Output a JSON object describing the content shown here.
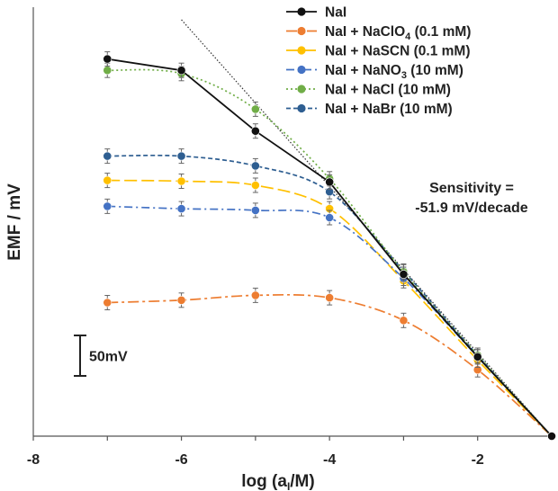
{
  "chart_data": {
    "type": "line",
    "title": "",
    "xlabel_main": "log (a",
    "xlabel_sub": "I",
    "xlabel_tail": "/M)",
    "ylabel": "EMF / mV",
    "xlim": [
      -8,
      -1
    ],
    "ylim": [
      0,
      530
    ],
    "x_ticks": [
      -8,
      -6,
      -4,
      -2
    ],
    "x_tick_labels": [
      "-8",
      "-6",
      "-4",
      "-2"
    ],
    "grid": false,
    "legend_position": "top-right",
    "scale_bar_label": "50mV",
    "scale_bar_mv": 50,
    "annotation_lines": [
      "Sensitivity =",
      "-51.9 mV/decade"
    ],
    "series": [
      {
        "name": "NaI",
        "legend_parts": [
          "NaI"
        ],
        "color": "#111111",
        "dash": "",
        "x": [
          -7,
          -6,
          -5,
          -4,
          -3,
          -2,
          -1
        ],
        "y": [
          466,
          452,
          377,
          314,
          200,
          98,
          0
        ]
      },
      {
        "name": "NaI + NaClO4 (0.1 mM)",
        "legend_parts": [
          "NaI + NaClO",
          "4",
          " (0.1 mM)"
        ],
        "color": "#ED7D31",
        "dash": "12 4 3 4",
        "x": [
          -7,
          -6,
          -5,
          -4,
          -3,
          -2,
          -1
        ],
        "y": [
          165,
          168,
          174,
          171,
          143,
          82,
          0
        ]
      },
      {
        "name": "NaI + NaSCN (0.1 mM)",
        "legend_parts": [
          "NaI + NaSCN (0.1 mM)"
        ],
        "color": "#FFC000",
        "dash": "14 5",
        "x": [
          -7,
          -6,
          -5,
          -4,
          -3,
          -2,
          -1
        ],
        "y": [
          316,
          315,
          310,
          281,
          192,
          94,
          0
        ]
      },
      {
        "name": "NaI + NaNO3 (10 mM)",
        "legend_parts": [
          "NaI + NaNO",
          "3",
          " (10 mM)"
        ],
        "color": "#4472C4",
        "dash": "9 4 2 4",
        "x": [
          -7,
          -6,
          -5,
          -4,
          -3,
          -2,
          -1
        ],
        "y": [
          284,
          281,
          279,
          270,
          195,
          98,
          0
        ]
      },
      {
        "name": "NaI + NaCl (10 mM)",
        "legend_parts": [
          "NaI + NaCl (10 mM)"
        ],
        "color": "#70AD47",
        "dash": "2 3",
        "x": [
          -7,
          -6,
          -5,
          -4,
          -3,
          -2,
          -1
        ],
        "y": [
          452,
          448,
          404,
          318,
          203,
          100,
          0
        ]
      },
      {
        "name": "NaI + NaBr (10 mM)",
        "legend_parts": [
          "NaI + NaBr (10 mM)"
        ],
        "color": "#2E5E91",
        "dash": "5 3",
        "x": [
          -7,
          -6,
          -5,
          -4,
          -3,
          -2,
          -1
        ],
        "y": [
          346,
          346,
          334,
          302,
          204,
          100,
          0
        ]
      }
    ],
    "fit_line": {
      "color": "#333333",
      "x": [
        -6,
        -1
      ],
      "y": [
        514.5,
        0
      ]
    }
  }
}
